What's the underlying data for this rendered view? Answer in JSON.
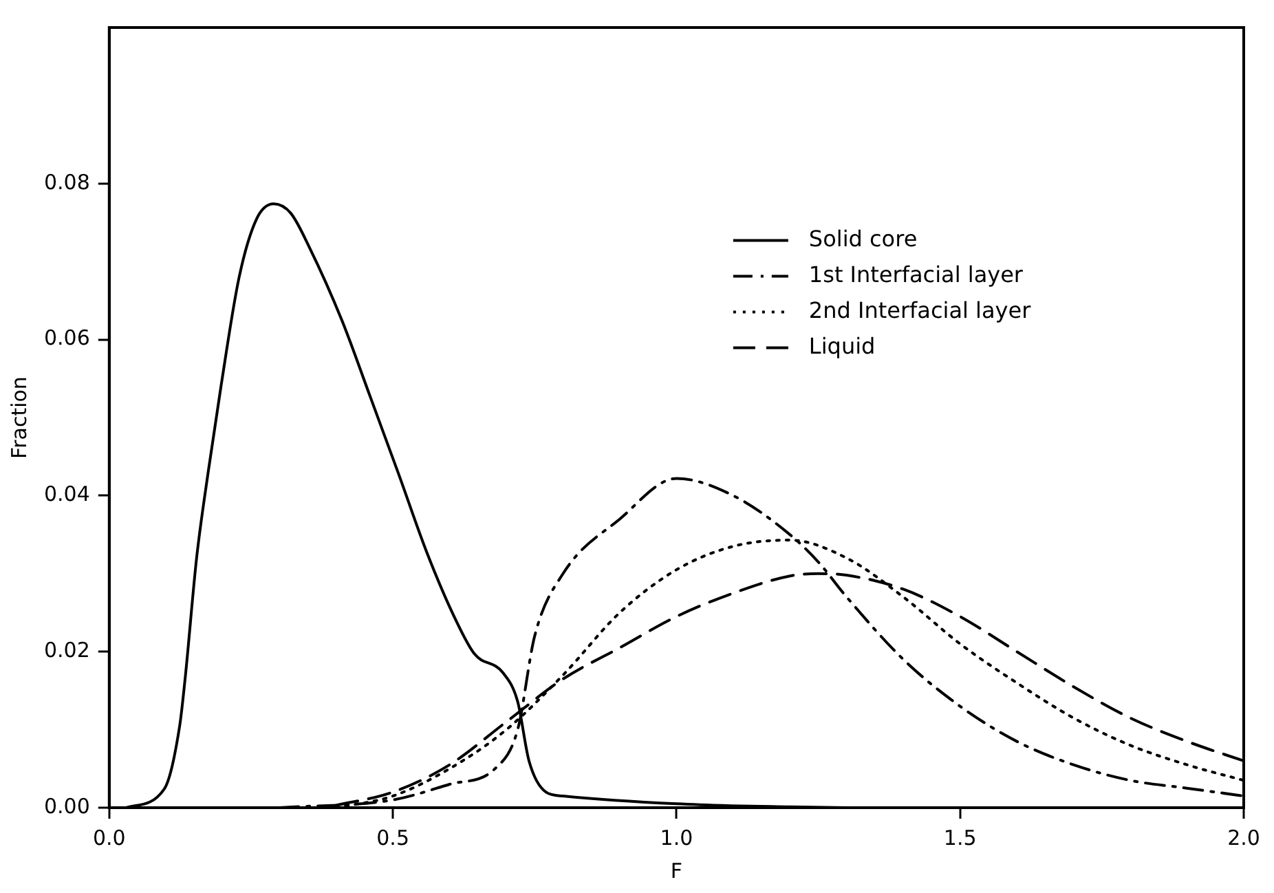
{
  "chart_data": {
    "type": "line",
    "xlabel": "F",
    "ylabel": "Fraction",
    "xlim": [
      0,
      2
    ],
    "ylim": [
      0,
      0.1
    ],
    "xticks": [
      {
        "value": 0,
        "label": "0.0"
      },
      {
        "value": 0.5,
        "label": "0.5"
      },
      {
        "value": 1,
        "label": "1.0"
      },
      {
        "value": 1.5,
        "label": "1.5"
      },
      {
        "value": 2,
        "label": "2.0"
      }
    ],
    "yticks": [
      {
        "value": 0,
        "label": "0.00"
      },
      {
        "value": 0.02,
        "label": "0.02"
      },
      {
        "value": 0.04,
        "label": "0.04"
      },
      {
        "value": 0.06,
        "label": "0.06"
      },
      {
        "value": 0.08,
        "label": "0.08"
      }
    ],
    "grid": false,
    "legend": "right",
    "marker": "none",
    "series": [
      {
        "name": "Solid core",
        "color": "#000000",
        "line_style": "solid",
        "x": [
          0.03,
          0.097,
          0.124,
          0.134,
          0.154,
          0.174,
          0.197,
          0.229,
          0.26,
          0.29,
          0.32,
          0.353,
          0.41,
          0.46,
          0.51,
          0.56,
          0.61,
          0.644,
          0.694,
          0.72,
          0.74,
          0.77,
          0.8,
          1.0,
          1.2,
          1.3
        ],
        "values": [
          0,
          0.0024,
          0.0104,
          0.0167,
          0.032,
          0.0428,
          0.054,
          0.068,
          0.0755,
          0.0774,
          0.0762,
          0.0718,
          0.0625,
          0.0527,
          0.0428,
          0.0327,
          0.0242,
          0.0197,
          0.0173,
          0.0136,
          0.006,
          0.002,
          0.0015,
          0.0005,
          0.0001,
          0
        ]
      },
      {
        "name": "1st Interfacial layer",
        "color": "#000000",
        "line_style": "dashdot",
        "x": [
          0.3,
          0.5,
          0.6,
          0.68,
          0.72,
          0.75,
          0.8,
          0.9,
          1.0,
          1.1,
          1.2,
          1.25,
          1.3,
          1.4,
          1.5,
          1.6,
          1.7,
          1.8,
          1.9,
          2.0
        ],
        "values": [
          0,
          0.001,
          0.003,
          0.005,
          0.01,
          0.022,
          0.03,
          0.037,
          0.0422,
          0.04,
          0.035,
          0.0315,
          0.027,
          0.019,
          0.013,
          0.0085,
          0.0055,
          0.0035,
          0.0025,
          0.0015
        ]
      },
      {
        "name": "2nd Interfacial layer",
        "color": "#000000",
        "line_style": "dotted",
        "x": [
          0.4,
          0.5,
          0.6,
          0.7,
          0.8,
          0.9,
          1.0,
          1.1,
          1.2,
          1.3,
          1.4,
          1.5,
          1.6,
          1.7,
          1.8,
          1.9,
          2.0
        ],
        "values": [
          0,
          0.0015,
          0.005,
          0.01,
          0.017,
          0.025,
          0.0305,
          0.0335,
          0.0343,
          0.032,
          0.027,
          0.021,
          0.016,
          0.0115,
          0.008,
          0.0055,
          0.0035
        ]
      },
      {
        "name": "Liquid",
        "color": "#000000",
        "line_style": "dashed",
        "x": [
          0.4,
          0.5,
          0.6,
          0.7,
          0.8,
          0.9,
          1.0,
          1.1,
          1.2,
          1.25,
          1.3,
          1.4,
          1.5,
          1.6,
          1.7,
          1.8,
          1.9,
          2.0
        ],
        "values": [
          0.0003,
          0.002,
          0.0055,
          0.011,
          0.0165,
          0.0205,
          0.0245,
          0.0275,
          0.0297,
          0.03,
          0.0298,
          0.028,
          0.0245,
          0.02,
          0.0155,
          0.0115,
          0.0085,
          0.006
        ]
      }
    ]
  }
}
